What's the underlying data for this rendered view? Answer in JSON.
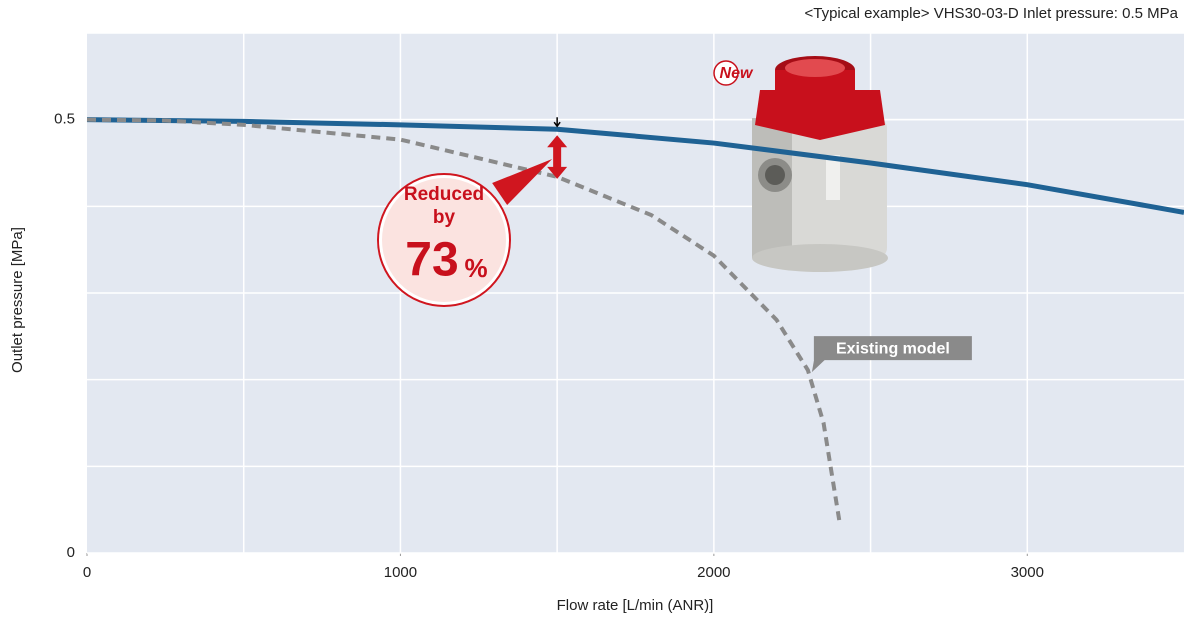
{
  "chart_data": {
    "type": "line",
    "subtitle": "<Typical example> VHS30-03-D Inlet pressure: 0.5 MPa",
    "x_label": "Flow rate [L/min (ANR)]",
    "y_label": "Outlet pressure [MPa]",
    "xlim": [
      0,
      3500
    ],
    "xticks": [
      0,
      1000,
      2000,
      3000
    ],
    "ylim": [
      0,
      0.6
    ],
    "yticks": [
      0,
      0.5
    ],
    "grid": true,
    "x_grid_subdivisions": 2,
    "y_grid_subdivisions": 5,
    "background": "#e3e8f1",
    "series": [
      {
        "color": "#1f6294",
        "dashed": false,
        "x": [
          0,
          500,
          1000,
          1500,
          2000,
          2500,
          3000,
          3500
        ],
        "values": [
          0.5,
          0.498,
          0.494,
          0.489,
          0.473,
          0.45,
          0.425,
          0.393
        ]
      },
      {
        "name": "Existing model",
        "color": "#8a8a8a",
        "dashed": true,
        "x": [
          0,
          250,
          500,
          1000,
          1500,
          1800,
          2000,
          2200,
          2300,
          2350,
          2400
        ],
        "values": [
          0.5,
          0.499,
          0.494,
          0.477,
          0.434,
          0.39,
          0.343,
          0.269,
          0.211,
          0.15,
          0.038
        ]
      }
    ],
    "badge": {
      "lines": [
        "Reduced",
        "by"
      ],
      "value": "73",
      "unit": "%",
      "at_x": 1500
    },
    "product_tag": "New"
  }
}
